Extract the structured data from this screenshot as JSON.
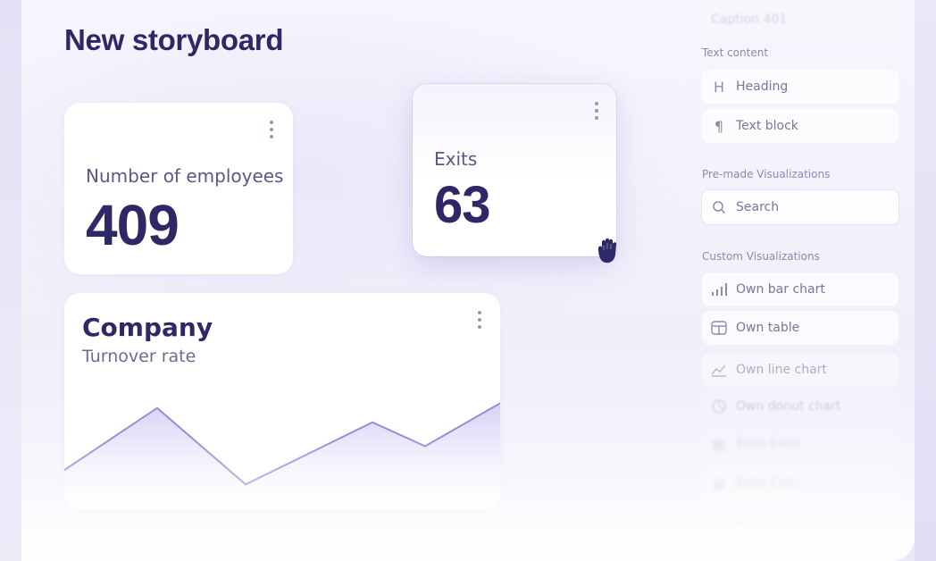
{
  "page": {
    "title": "New storyboard"
  },
  "cards": {
    "employees": {
      "label": "Number of employees",
      "value": "409"
    },
    "exits": {
      "label": "Exits",
      "value": "63"
    },
    "company": {
      "title": "Company",
      "subtitle": "Turnover rate"
    }
  },
  "chart_data": {
    "type": "area",
    "x": [
      0,
      1,
      2,
      3,
      4,
      5
    ],
    "values": [
      0.25,
      0.9,
      0.1,
      0.75,
      0.5,
      0.95
    ],
    "title": "Company",
    "subtitle": "Turnover rate",
    "xlabel": "",
    "ylabel": "",
    "grid": false,
    "colors": {
      "line": "#9d8ad6",
      "fill_top": "#d9d0f6",
      "fill_bottom": "#f4f1fc"
    }
  },
  "panel": {
    "top_item": "Caption 401",
    "sections": [
      {
        "label": "Text content",
        "items": [
          {
            "icon": "heading-icon",
            "label": "Heading"
          },
          {
            "icon": "paragraph-icon",
            "label": "Text block"
          }
        ]
      },
      {
        "label": "Pre-made Visualizations",
        "search_placeholder": "Search"
      },
      {
        "label": "Custom Visualizations",
        "items": [
          {
            "icon": "bar-chart-icon",
            "label": "Own bar chart"
          },
          {
            "icon": "table-icon",
            "label": "Own table"
          },
          {
            "icon": "line-chart-icon",
            "label": "Own line chart"
          },
          {
            "icon": "donut-chart-icon",
            "label": "Own donut chart"
          },
          {
            "icon": "kanban-icon",
            "label": "Exits Exits"
          },
          {
            "icon": "kanban-icon",
            "label": "Exits Exits"
          }
        ]
      },
      {
        "label": "Applications"
      }
    ]
  },
  "theme": {
    "accent": "#2f2866",
    "muted": "#8d88ad",
    "chart_line": "#9d8ad6"
  }
}
